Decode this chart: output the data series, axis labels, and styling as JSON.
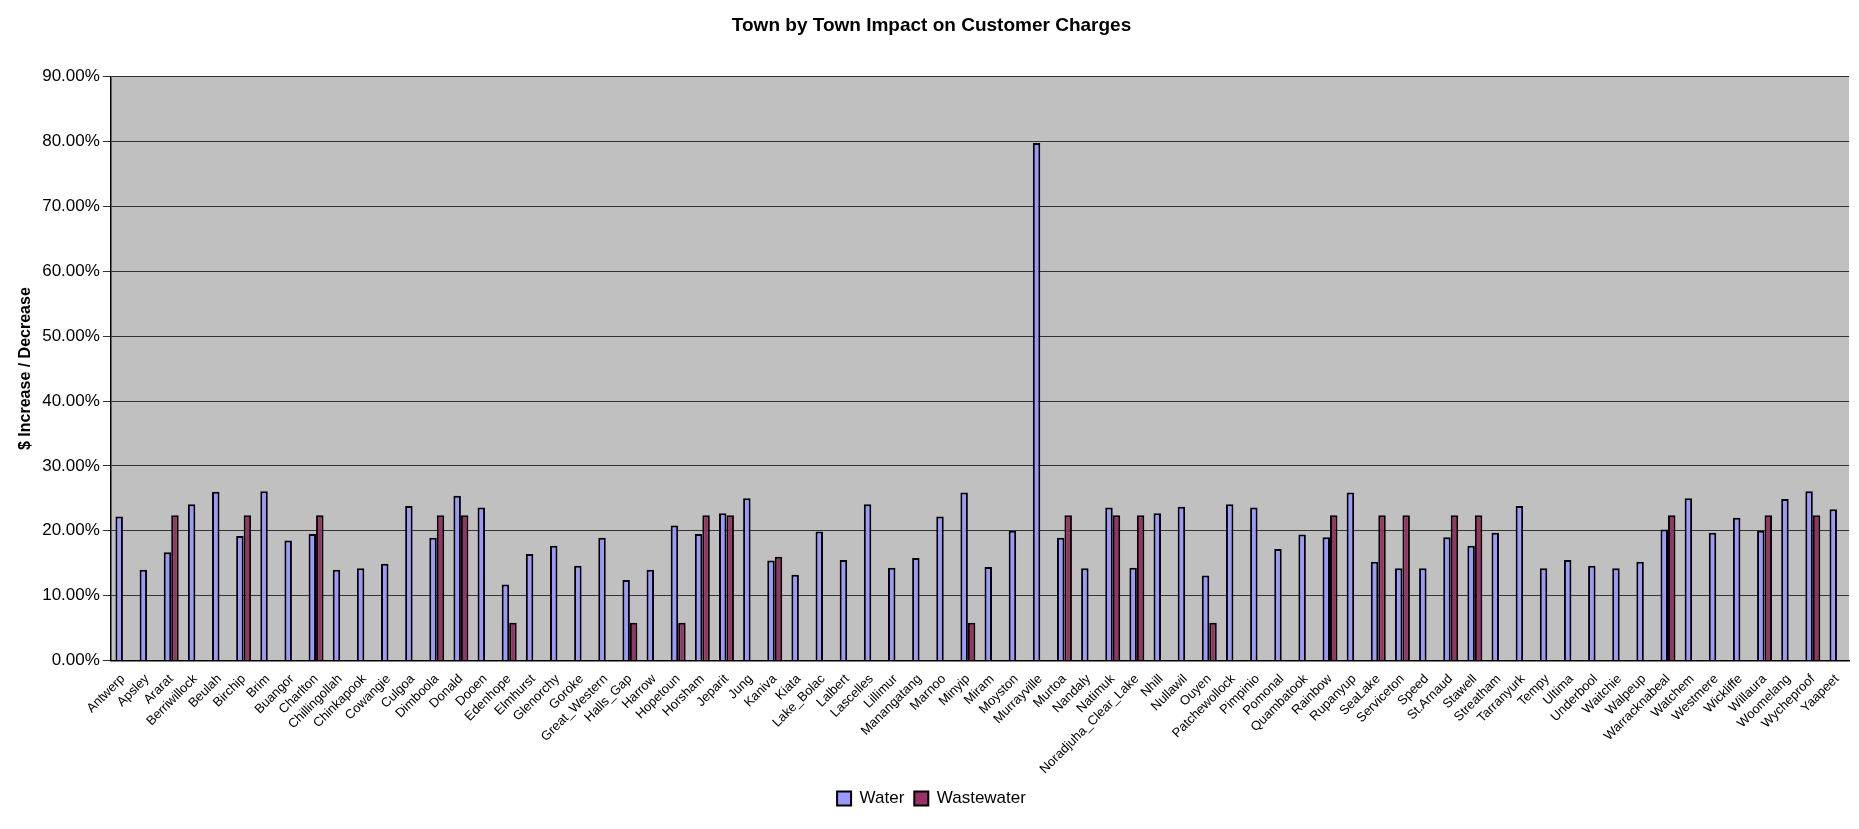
{
  "chart_data": {
    "type": "bar",
    "title": "Town by Town Impact on Customer Charges",
    "ylabel": "$ Increase / Decrease",
    "categories": [
      "Antwerp",
      "Apsley",
      "Ararat",
      "Berriwillock",
      "Beulah",
      "Birchip",
      "Brim",
      "Buangor",
      "Charlton",
      "Chillingollah",
      "Chinkapook",
      "Cowangie",
      "Culgoa",
      "Dimboola",
      "Donald",
      "Dooen",
      "Edenhope",
      "Elmhurst",
      "Glenorchy",
      "Goroke",
      "Great_Western",
      "Halls_Gap",
      "Harrow",
      "Hopetoun",
      "Horsham",
      "Jeparit",
      "Jung",
      "Kaniva",
      "Kiata",
      "Lake_Bolac",
      "Lalbert",
      "Lascelles",
      "Lillimur",
      "Manangatang",
      "Marnoo",
      "Minyip",
      "Miram",
      "Moyston",
      "Murrayville",
      "Murtoa",
      "Nandaly",
      "Natimuk",
      "Noradjuha_Clear_Lake",
      "Nhill",
      "Nullawil",
      "Ouyen",
      "Patchewollock",
      "Pimpinio",
      "Pomonal",
      "Quambatook",
      "Rainbow",
      "Rupanyup",
      "SeaLake",
      "Serviceton",
      "Speed",
      "St.Arnaud",
      "Stawell",
      "Streatham",
      "Tarranyurk",
      "Tempy",
      "Ultima",
      "Underbool",
      "Waitchie",
      "Walpeup",
      "Warracknabeal",
      "Watchem",
      "Westmere",
      "Wickliffe",
      "Willaura",
      "Woomelang",
      "Wycheproof",
      "Yaapeet"
    ],
    "series": [
      {
        "name": "Water",
        "color": "#9999ff",
        "values": [
          22.2,
          14.0,
          16.7,
          24.1,
          26.0,
          19.2,
          26.1,
          18.5,
          19.5,
          14.0,
          14.2,
          14.9,
          23.8,
          18.9,
          25.4,
          23.6,
          11.7,
          16.4,
          17.7,
          14.6,
          18.9,
          12.4,
          14.0,
          20.8,
          19.5,
          22.7,
          25.0,
          15.4,
          13.2,
          19.9,
          15.5,
          24.1,
          14.3,
          15.8,
          22.2,
          25.9,
          14.4,
          20.0,
          79.8,
          18.9,
          14.2,
          23.6,
          14.3,
          22.7,
          23.7,
          13.1,
          24.1,
          23.6,
          17.2,
          19.4,
          19.0,
          25.9,
          15.2,
          14.2,
          14.2,
          19.0,
          17.7,
          19.7,
          23.8,
          14.2,
          15.5,
          14.6,
          14.2,
          15.2,
          20.2,
          25.0,
          19.7,
          22.0,
          20.0,
          24.9,
          26.1,
          23.3
        ]
      },
      {
        "name": "Wastewater",
        "color": "#993366",
        "values": [
          null,
          null,
          22.4,
          null,
          null,
          22.4,
          null,
          null,
          22.4,
          null,
          null,
          null,
          null,
          22.4,
          22.4,
          null,
          5.8,
          null,
          null,
          null,
          null,
          5.8,
          null,
          5.8,
          22.4,
          22.4,
          null,
          16.0,
          null,
          null,
          null,
          null,
          null,
          null,
          null,
          5.8,
          null,
          null,
          null,
          22.4,
          null,
          22.4,
          22.4,
          null,
          null,
          5.8,
          null,
          null,
          null,
          null,
          22.4,
          null,
          22.4,
          22.4,
          null,
          22.4,
          22.4,
          null,
          null,
          null,
          null,
          null,
          null,
          null,
          22.4,
          null,
          null,
          null,
          22.4,
          null,
          22.4,
          null
        ]
      }
    ],
    "ylim": [
      0,
      90
    ],
    "yticks": [
      {
        "value": 0,
        "label": "0.00%"
      },
      {
        "value": 10,
        "label": "10.00%"
      },
      {
        "value": 20,
        "label": "20.00%"
      },
      {
        "value": 30,
        "label": "30.00%"
      },
      {
        "value": 40,
        "label": "40.00%"
      },
      {
        "value": 50,
        "label": "50.00%"
      },
      {
        "value": 60,
        "label": "60.00%"
      },
      {
        "value": 70,
        "label": "70.00%"
      },
      {
        "value": 80,
        "label": "80.00%"
      },
      {
        "value": 90,
        "label": "90.00%"
      }
    ],
    "grid": "y",
    "legend": "bottom"
  }
}
